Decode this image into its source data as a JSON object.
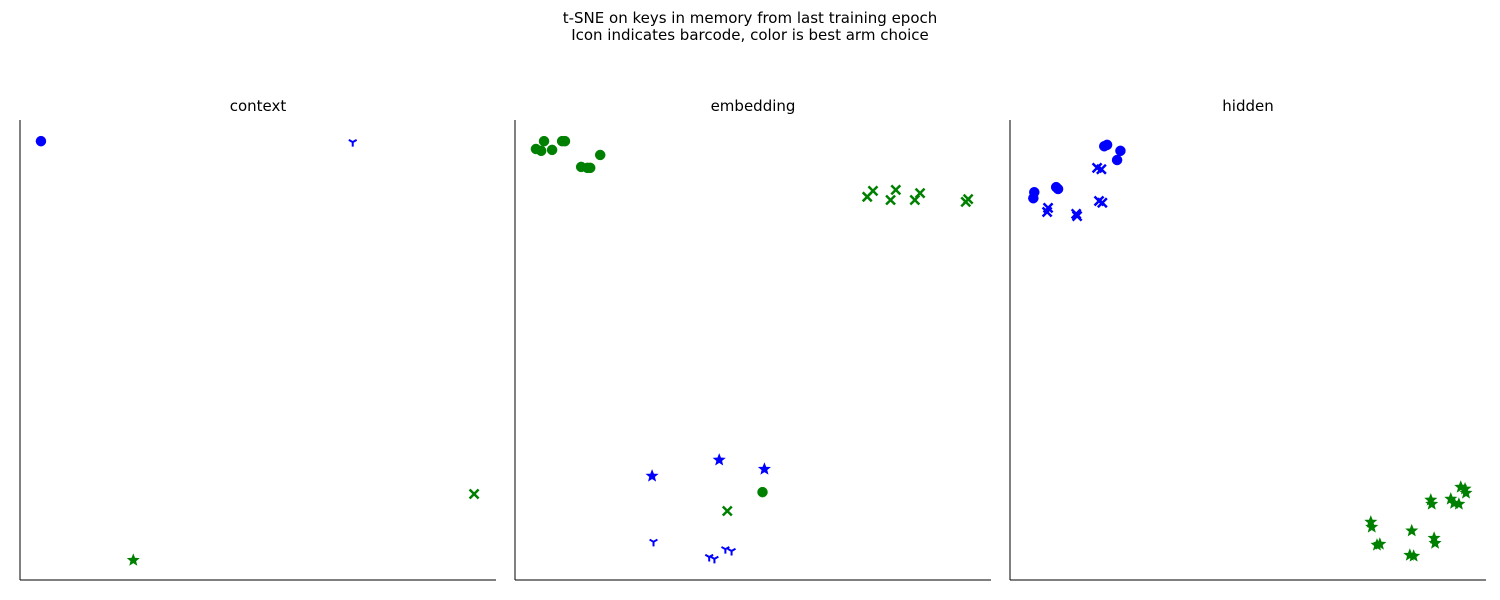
{
  "figure": {
    "title_line1": "t-SNE on keys in memory from last training epoch",
    "title_line2": "Icon indicates barcode, color is best arm choice"
  },
  "colors": {
    "blue": "#0000ff",
    "green": "#008000",
    "axis": "#000000"
  },
  "chart_data": [
    {
      "type": "scatter",
      "title": "context",
      "xlim": [
        0,
        100
      ],
      "ylim": [
        0,
        100
      ],
      "grid": false,
      "ticks": false,
      "points": [
        {
          "x": 4.4,
          "y": 95.4,
          "marker": "o",
          "color": "blue"
        },
        {
          "x": 69.9,
          "y": 95.2,
          "marker": "1",
          "color": "blue"
        },
        {
          "x": 95.4,
          "y": 18.7,
          "marker": "x",
          "color": "green"
        },
        {
          "x": 23.8,
          "y": 4.3,
          "marker": "*",
          "color": "green"
        }
      ]
    },
    {
      "type": "scatter",
      "title": "embedding",
      "xlim": [
        0,
        100
      ],
      "ylim": [
        0,
        100
      ],
      "grid": false,
      "ticks": false,
      "points": [
        {
          "x": 4.4,
          "y": 93.7,
          "marker": "o",
          "color": "green"
        },
        {
          "x": 6.1,
          "y": 95.4,
          "marker": "o",
          "color": "green"
        },
        {
          "x": 5.5,
          "y": 93.3,
          "marker": "o",
          "color": "green"
        },
        {
          "x": 7.8,
          "y": 93.5,
          "marker": "o",
          "color": "green"
        },
        {
          "x": 9.9,
          "y": 95.4,
          "marker": "o",
          "color": "green"
        },
        {
          "x": 10.5,
          "y": 95.4,
          "marker": "o",
          "color": "green"
        },
        {
          "x": 13.9,
          "y": 89.8,
          "marker": "o",
          "color": "green"
        },
        {
          "x": 15.2,
          "y": 89.6,
          "marker": "o",
          "color": "green"
        },
        {
          "x": 15.8,
          "y": 89.6,
          "marker": "o",
          "color": "green"
        },
        {
          "x": 17.9,
          "y": 92.4,
          "marker": "o",
          "color": "green"
        },
        {
          "x": 74.0,
          "y": 83.3,
          "marker": "x",
          "color": "green"
        },
        {
          "x": 75.2,
          "y": 84.6,
          "marker": "x",
          "color": "green"
        },
        {
          "x": 78.9,
          "y": 82.6,
          "marker": "x",
          "color": "green"
        },
        {
          "x": 80.0,
          "y": 84.8,
          "marker": "x",
          "color": "green"
        },
        {
          "x": 84.0,
          "y": 82.6,
          "marker": "x",
          "color": "green"
        },
        {
          "x": 85.1,
          "y": 84.1,
          "marker": "x",
          "color": "green"
        },
        {
          "x": 94.7,
          "y": 82.2,
          "marker": "x",
          "color": "green"
        },
        {
          "x": 95.2,
          "y": 82.8,
          "marker": "x",
          "color": "green"
        },
        {
          "x": 28.8,
          "y": 22.6,
          "marker": "*",
          "color": "blue"
        },
        {
          "x": 42.9,
          "y": 26.1,
          "marker": "*",
          "color": "blue"
        },
        {
          "x": 52.4,
          "y": 24.1,
          "marker": "*",
          "color": "blue"
        },
        {
          "x": 52.0,
          "y": 19.1,
          "marker": "o",
          "color": "green"
        },
        {
          "x": 44.6,
          "y": 15.0,
          "marker": "x",
          "color": "green"
        },
        {
          "x": 29.1,
          "y": 8.3,
          "marker": "1",
          "color": "blue"
        },
        {
          "x": 40.8,
          "y": 5.0,
          "marker": "1",
          "color": "blue"
        },
        {
          "x": 41.9,
          "y": 4.6,
          "marker": "1",
          "color": "blue"
        },
        {
          "x": 44.2,
          "y": 6.7,
          "marker": "1",
          "color": "blue"
        },
        {
          "x": 45.5,
          "y": 6.3,
          "marker": "1",
          "color": "blue"
        }
      ]
    },
    {
      "type": "scatter",
      "title": "hidden",
      "xlim": [
        0,
        100
      ],
      "ylim": [
        0,
        100
      ],
      "grid": false,
      "ticks": false,
      "points": [
        {
          "x": 19.8,
          "y": 94.3,
          "marker": "o",
          "color": "blue"
        },
        {
          "x": 20.4,
          "y": 94.6,
          "marker": "o",
          "color": "blue"
        },
        {
          "x": 23.2,
          "y": 93.3,
          "marker": "o",
          "color": "blue"
        },
        {
          "x": 22.5,
          "y": 91.3,
          "marker": "o",
          "color": "blue"
        },
        {
          "x": 18.3,
          "y": 89.6,
          "marker": "x",
          "color": "blue"
        },
        {
          "x": 19.2,
          "y": 89.3,
          "marker": "x",
          "color": "blue"
        },
        {
          "x": 5.1,
          "y": 84.3,
          "marker": "o",
          "color": "blue"
        },
        {
          "x": 4.9,
          "y": 83.0,
          "marker": "o",
          "color": "blue"
        },
        {
          "x": 9.7,
          "y": 85.4,
          "marker": "o",
          "color": "blue"
        },
        {
          "x": 10.1,
          "y": 85.0,
          "marker": "o",
          "color": "blue"
        },
        {
          "x": 8.0,
          "y": 80.9,
          "marker": "x",
          "color": "blue"
        },
        {
          "x": 7.8,
          "y": 80.0,
          "marker": "x",
          "color": "blue"
        },
        {
          "x": 13.9,
          "y": 79.6,
          "marker": "x",
          "color": "blue"
        },
        {
          "x": 14.1,
          "y": 79.1,
          "marker": "x",
          "color": "blue"
        },
        {
          "x": 18.7,
          "y": 82.4,
          "marker": "x",
          "color": "blue"
        },
        {
          "x": 19.4,
          "y": 82.0,
          "marker": "x",
          "color": "blue"
        },
        {
          "x": 94.7,
          "y": 20.2,
          "marker": "*",
          "color": "green"
        },
        {
          "x": 95.6,
          "y": 19.8,
          "marker": "*",
          "color": "green"
        },
        {
          "x": 95.8,
          "y": 18.9,
          "marker": "*",
          "color": "green"
        },
        {
          "x": 92.6,
          "y": 17.6,
          "marker": "*",
          "color": "green"
        },
        {
          "x": 93.3,
          "y": 16.7,
          "marker": "*",
          "color": "green"
        },
        {
          "x": 94.3,
          "y": 16.5,
          "marker": "*",
          "color": "green"
        },
        {
          "x": 88.4,
          "y": 17.4,
          "marker": "*",
          "color": "green"
        },
        {
          "x": 88.6,
          "y": 16.5,
          "marker": "*",
          "color": "green"
        },
        {
          "x": 75.8,
          "y": 12.6,
          "marker": "*",
          "color": "green"
        },
        {
          "x": 76.0,
          "y": 11.5,
          "marker": "*",
          "color": "green"
        },
        {
          "x": 84.4,
          "y": 10.7,
          "marker": "*",
          "color": "green"
        },
        {
          "x": 89.1,
          "y": 9.1,
          "marker": "*",
          "color": "green"
        },
        {
          "x": 89.3,
          "y": 8.0,
          "marker": "*",
          "color": "green"
        },
        {
          "x": 77.1,
          "y": 7.6,
          "marker": "*",
          "color": "green"
        },
        {
          "x": 77.7,
          "y": 7.8,
          "marker": "*",
          "color": "green"
        },
        {
          "x": 84.0,
          "y": 5.4,
          "marker": "*",
          "color": "green"
        },
        {
          "x": 84.8,
          "y": 5.2,
          "marker": "*",
          "color": "green"
        }
      ]
    }
  ]
}
